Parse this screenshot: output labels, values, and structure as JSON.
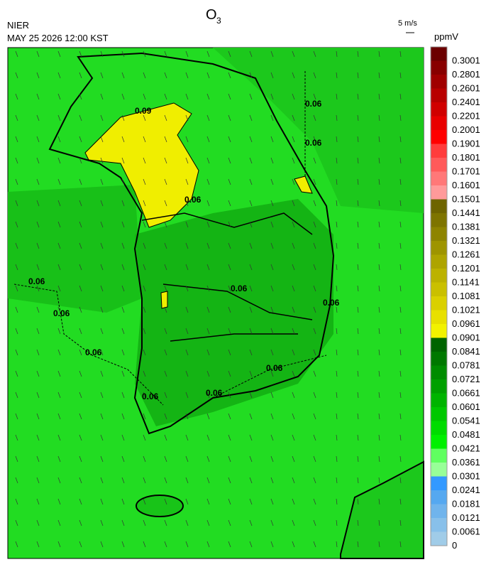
{
  "header": {
    "agency": "NIER",
    "datetime": "MAY 25 2026 12:00 KST",
    "title": {
      "text": "O",
      "subscript": "3"
    },
    "wind_scale": "5 m/s"
  },
  "colorbar": {
    "unit": "ppmV",
    "labels": [
      "0.3001",
      "0.2801",
      "0.2601",
      "0.2401",
      "0.2201",
      "0.2001",
      "0.1901",
      "0.1801",
      "0.1701",
      "0.1601",
      "0.1501",
      "0.1441",
      "0.1381",
      "0.1321",
      "0.1261",
      "0.1201",
      "0.1141",
      "0.1081",
      "0.1021",
      "0.0961",
      "0.0901",
      "0.0841",
      "0.0781",
      "0.0721",
      "0.0661",
      "0.0601",
      "0.0541",
      "0.0481",
      "0.0421",
      "0.0361",
      "0.0301",
      "0.0241",
      "0.0181",
      "0.0121",
      "0.0061",
      "0"
    ],
    "colors": [
      "#6b0000",
      "#880000",
      "#a00000",
      "#b80000",
      "#d00000",
      "#e80000",
      "#ff0000",
      "#ff3c3c",
      "#ff5a5a",
      "#ff7878",
      "#ff9a9a",
      "#6e6400",
      "#7e7400",
      "#8e8400",
      "#9e9400",
      "#aea400",
      "#bcb200",
      "#cac000",
      "#dad000",
      "#e8e000",
      "#f2f200",
      "#006400",
      "#007800",
      "#008c00",
      "#00a000",
      "#00b400",
      "#00c800",
      "#00dc00",
      "#00f000",
      "#60ff60",
      "#98ff98",
      "#3399ff",
      "#55a8f0",
      "#70b4ec",
      "#88c0ea",
      "#a0cce8"
    ]
  },
  "contour_labels": [
    "0.06",
    "0.09",
    "0.06",
    "0.06",
    "0.06",
    "0.06",
    "0.06",
    "0.06",
    "0.06",
    "0.06",
    "0.06",
    "0.06"
  ]
}
